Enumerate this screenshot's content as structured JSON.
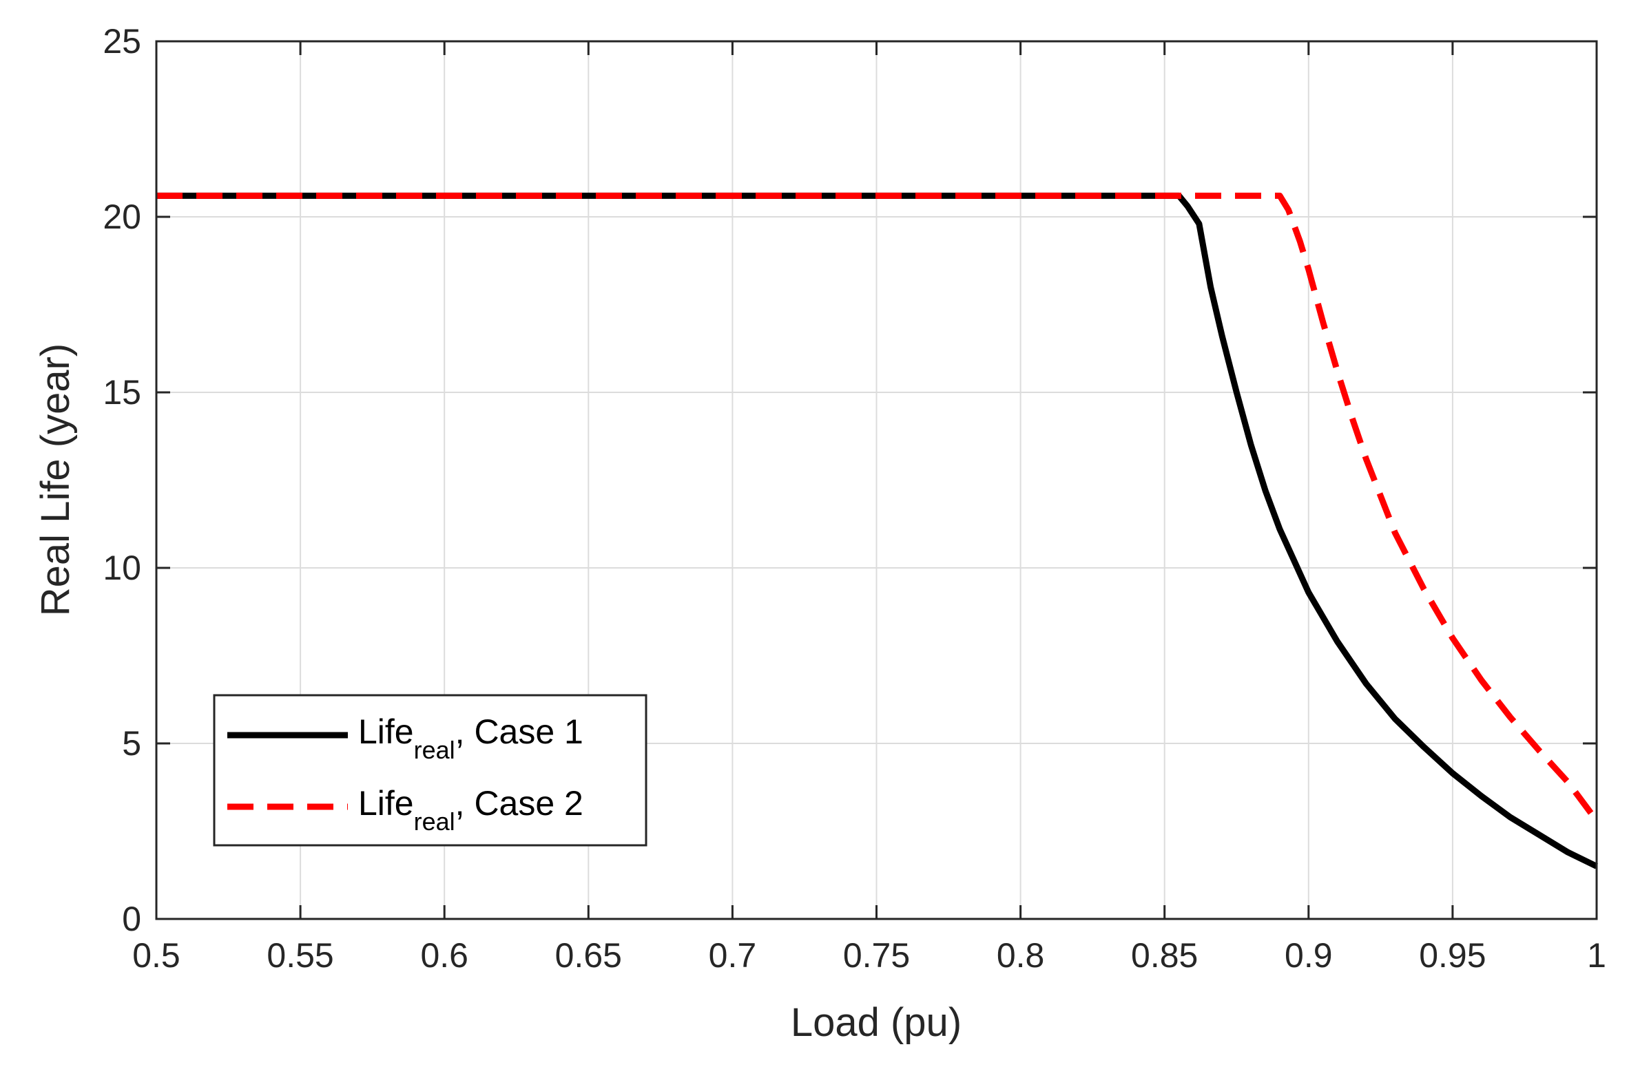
{
  "chart_data": {
    "type": "line",
    "title": "",
    "xlabel": "Load (pu)",
    "ylabel": "Real Life (year)",
    "xlim": [
      0.5,
      1.0
    ],
    "ylim": [
      0,
      25
    ],
    "grid": true,
    "legend_position": "bottom-left",
    "x_ticks": [
      "0.5",
      "0.55",
      "0.6",
      "0.65",
      "0.7",
      "0.75",
      "0.8",
      "0.85",
      "0.9",
      "0.95",
      "1"
    ],
    "x_tick_values": [
      0.5,
      0.55,
      0.6,
      0.65,
      0.7,
      0.75,
      0.8,
      0.85,
      0.9,
      0.95,
      1.0
    ],
    "y_ticks": [
      "0",
      "5",
      "10",
      "15",
      "20",
      "25"
    ],
    "y_tick_values": [
      0,
      5,
      10,
      15,
      20,
      25
    ],
    "series": [
      {
        "name_main": "Life",
        "name_sub": "real",
        "name_suffix": ", Case 1",
        "color": "#000000",
        "style": "solid",
        "x": [
          0.5,
          0.855,
          0.858,
          0.862,
          0.866,
          0.87,
          0.875,
          0.88,
          0.885,
          0.89,
          0.895,
          0.9,
          0.91,
          0.92,
          0.93,
          0.94,
          0.95,
          0.96,
          0.97,
          0.98,
          0.99,
          1.0
        ],
        "y": [
          20.6,
          20.6,
          20.3,
          19.8,
          18.0,
          16.6,
          15.0,
          13.5,
          12.2,
          11.1,
          10.2,
          9.3,
          7.9,
          6.7,
          5.7,
          4.9,
          4.15,
          3.5,
          2.9,
          2.4,
          1.9,
          1.5
        ]
      },
      {
        "name_main": "Life",
        "name_sub": "real",
        "name_suffix": ", Case 2",
        "color": "#ff0000",
        "style": "dashed",
        "x": [
          0.5,
          0.89,
          0.893,
          0.897,
          0.9,
          0.905,
          0.91,
          0.915,
          0.92,
          0.93,
          0.94,
          0.95,
          0.96,
          0.97,
          0.98,
          0.99,
          1.0
        ],
        "y": [
          20.6,
          20.6,
          20.2,
          19.3,
          18.5,
          17.0,
          15.6,
          14.3,
          13.1,
          11.0,
          9.4,
          8.0,
          6.8,
          5.75,
          4.8,
          3.9,
          2.8
        ]
      }
    ]
  }
}
